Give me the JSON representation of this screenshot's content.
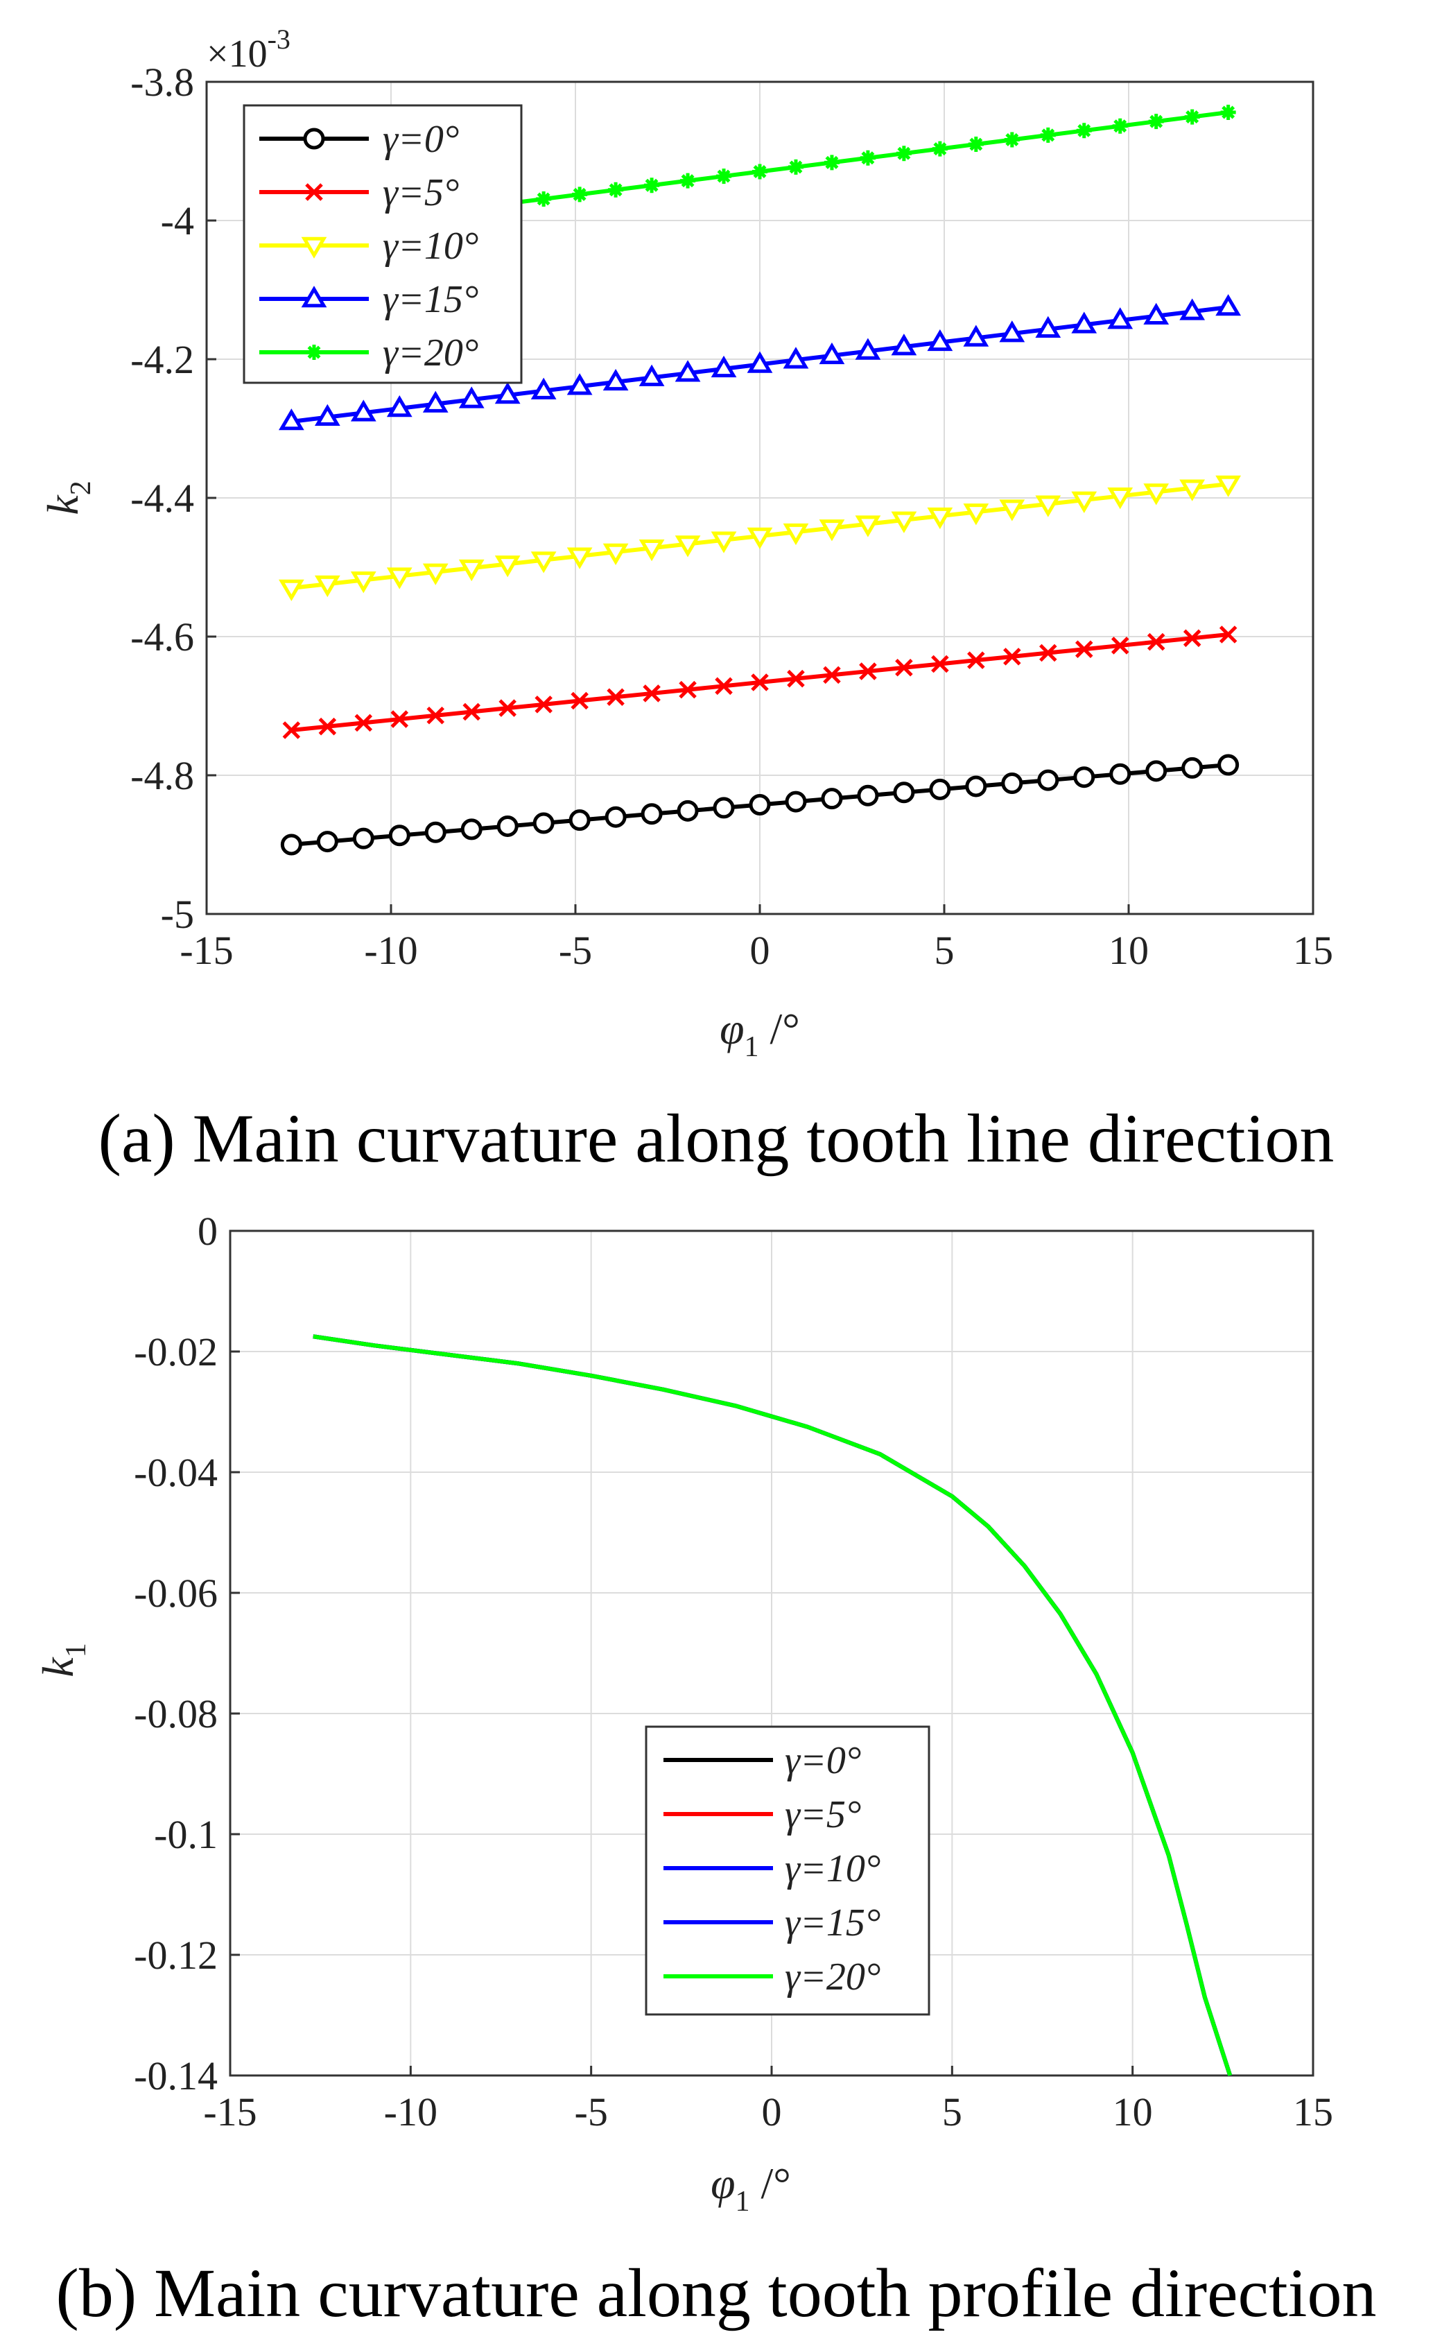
{
  "chart_data": [
    {
      "type": "line",
      "caption": "(a) Main curvature along tooth line direction",
      "scale_factor": {
        "base": "×10",
        "exponent": "-3"
      },
      "xlabel": {
        "symbol": "φ",
        "sub": "1",
        "unit": " /°"
      },
      "ylabel": {
        "symbol": "k",
        "sub": "2"
      },
      "xlim": [
        -15,
        15
      ],
      "ylim": [
        -5,
        -3.8
      ],
      "xticks": [
        -15,
        -10,
        -5,
        0,
        5,
        10,
        15
      ],
      "yticks": [
        -5,
        -4.8,
        -4.6,
        -4.4,
        -4.2,
        -4,
        -3.8
      ],
      "x_range": [
        -12.7,
        12.7
      ],
      "n_points": 27,
      "grid": true,
      "legend_position": "top-left",
      "series": [
        {
          "name": "γ=0°",
          "color": "#000000",
          "marker": "circle",
          "y_start": -4.9,
          "y_end": -4.785
        },
        {
          "name": "γ=5°",
          "color": "#ff0000",
          "marker": "x",
          "y_start": -4.735,
          "y_end": -4.597
        },
        {
          "name": "γ=10°",
          "color": "#ffff00",
          "marker": "triangle-down",
          "y_start": -4.53,
          "y_end": -4.38
        },
        {
          "name": "γ=15°",
          "color": "#0000ff",
          "marker": "triangle-up",
          "y_start": -4.29,
          "y_end": -4.125
        },
        {
          "name": "γ=20°",
          "color": "#00ff00",
          "marker": "star",
          "y_start": -4.015,
          "y_end": -3.844
        }
      ]
    },
    {
      "type": "line",
      "caption": "(b) Main curvature along tooth profile direction",
      "xlabel": {
        "symbol": "φ",
        "sub": "1",
        "unit": " /°"
      },
      "ylabel": {
        "symbol": "k",
        "sub": "1"
      },
      "xlim": [
        -15,
        15
      ],
      "ylim": [
        -0.14,
        0
      ],
      "xticks": [
        -15,
        -10,
        -5,
        0,
        5,
        10,
        15
      ],
      "yticks": [
        -0.14,
        -0.12,
        -0.1,
        -0.08,
        -0.06,
        -0.04,
        -0.02,
        0
      ],
      "ytick_labels": [
        "-0.14",
        "-0.12",
        "-0.1",
        "-0.08",
        "-0.06",
        "-0.04",
        "-0.02",
        "0"
      ],
      "grid": true,
      "legend_position": "center-bottom",
      "curve_x": [
        -12.7,
        -11,
        -9,
        -7,
        -5,
        -3,
        -1,
        1,
        3,
        5,
        6,
        7,
        8,
        9,
        10,
        11,
        11.5,
        12,
        12.7
      ],
      "curve_y": [
        -0.0175,
        -0.019,
        -0.0205,
        -0.022,
        -0.024,
        -0.0263,
        -0.029,
        -0.0325,
        -0.037,
        -0.044,
        -0.049,
        -0.0555,
        -0.0635,
        -0.0735,
        -0.0865,
        -0.1035,
        -0.115,
        -0.127,
        -0.14
      ],
      "series": [
        {
          "name": "γ=0°",
          "color": "#000000"
        },
        {
          "name": "γ=5°",
          "color": "#ff0000"
        },
        {
          "name": "γ=10°",
          "color": "#0000ff"
        },
        {
          "name": "γ=15°",
          "color": "#0000ff"
        },
        {
          "name": "γ=20°",
          "color": "#00ff00"
        }
      ]
    }
  ]
}
